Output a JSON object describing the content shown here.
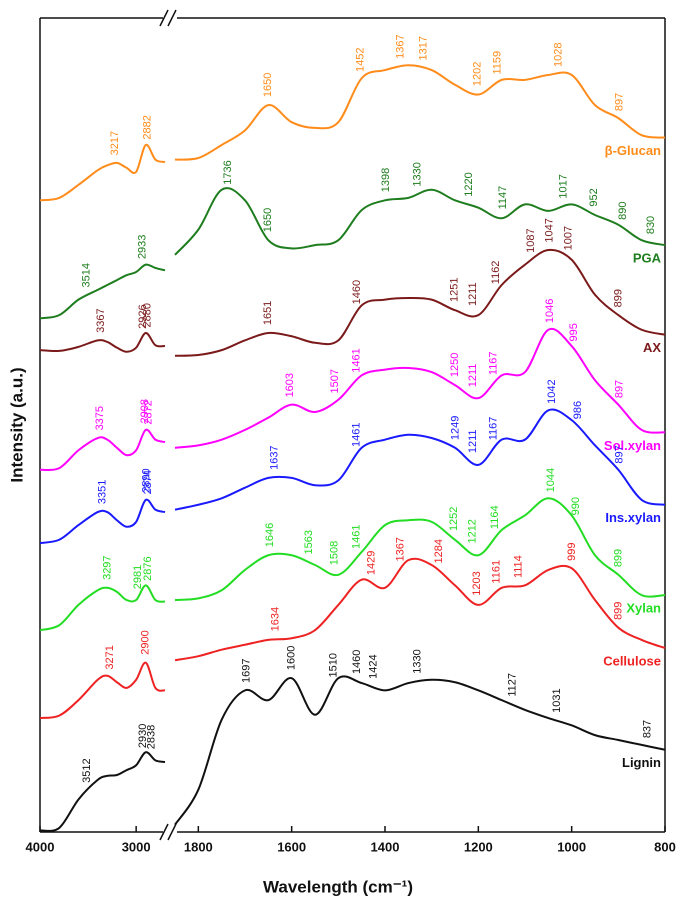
{
  "chart_data": {
    "type": "line",
    "xlabel": "Wavelength (cm⁻¹)",
    "ylabel": "Intensity (a.u.)",
    "xlim": [
      4000,
      800
    ],
    "xbreak": [
      2700,
      1850
    ],
    "ylim": [
      0,
      100
    ],
    "xticks": [
      4000,
      3000,
      1800,
      1600,
      1400,
      1200,
      1000,
      800
    ],
    "x": [
      4000,
      3800,
      3600,
      3400,
      3300,
      3200,
      3100,
      3000,
      2900,
      2800,
      2700,
      1850,
      1800,
      1750,
      1700,
      1650,
      1600,
      1550,
      1500,
      1450,
      1400,
      1350,
      1300,
      1250,
      1200,
      1150,
      1100,
      1050,
      1000,
      950,
      900,
      850,
      800
    ],
    "series": [
      {
        "name": "β-Glucan",
        "color": "#ff8c1a",
        "values": [
          77.6,
          77.9,
          79.5,
          81.3,
          81.9,
          82.2,
          81.6,
          81.1,
          84.4,
          82.6,
          82.3,
          82.6,
          82.8,
          84.4,
          86.2,
          89.3,
          87.2,
          86.5,
          87.2,
          92.6,
          93.6,
          94.2,
          93.6,
          91.8,
          90.6,
          92.4,
          92.4,
          93,
          93,
          89.3,
          87.7,
          85.6,
          85.3
        ],
        "peaks": [
          3217,
          2882,
          1650,
          1452,
          1367,
          1317,
          1202,
          1159,
          1028,
          897
        ]
      },
      {
        "name": "PGA",
        "color": "#1e7d1e",
        "values": [
          63.1,
          63.5,
          65.4,
          66.6,
          67.2,
          67.8,
          68.4,
          68.8,
          69.7,
          69.3,
          69,
          70.9,
          74,
          78.9,
          77.6,
          72.7,
          71.7,
          72.1,
          72.7,
          76.4,
          77.6,
          77.9,
          78.9,
          77.6,
          76.7,
          75.4,
          77.1,
          76.3,
          77.1,
          75.8,
          74.6,
          72.7,
          72.1
        ],
        "peaks": [
          3514,
          2933,
          1736,
          1650,
          1398,
          1330,
          1220,
          1147,
          1017,
          952,
          890,
          830
        ]
      },
      {
        "name": "AX",
        "color": "#7b1a1a",
        "values": [
          59.2,
          59.1,
          59.6,
          60.4,
          60.2,
          59.5,
          59,
          59.5,
          61.3,
          59.8,
          59.7,
          58.5,
          58.6,
          59.2,
          60.4,
          61.3,
          60.9,
          60.1,
          60.4,
          64.7,
          65.4,
          65.6,
          65.4,
          64.1,
          63.5,
          67.2,
          69.7,
          71.5,
          70.3,
          66,
          63.5,
          61.7,
          61.1
        ],
        "peaks": [
          3367,
          2926,
          2880,
          1651,
          1460,
          1251,
          1211,
          1162,
          1087,
          1047,
          1007,
          899
        ]
      },
      {
        "name": "Sol.xylan",
        "color": "#ff00ff",
        "values": [
          44.5,
          44.7,
          46.9,
          48.4,
          48.2,
          47.2,
          46.3,
          46.9,
          49.4,
          48.2,
          47.9,
          47.2,
          47.5,
          48.2,
          49.4,
          50.9,
          52.5,
          51.6,
          53.1,
          56.1,
          56.8,
          57,
          56.5,
          54.9,
          53.3,
          56.1,
          56.5,
          61.7,
          59.7,
          55.5,
          52.5,
          49.4,
          49.1
        ],
        "peaks": [
          3375,
          2908,
          2872,
          1603,
          1507,
          1461,
          1250,
          1211,
          1167,
          1046,
          995,
          897
        ]
      },
      {
        "name": "Ins.xylan",
        "color": "#1a1aff",
        "values": [
          35.5,
          35.9,
          37.7,
          39.3,
          39.3,
          38.3,
          37.5,
          38.1,
          40.8,
          39.6,
          39.3,
          39.6,
          40.2,
          41,
          42.3,
          43.5,
          43.5,
          42.6,
          43.2,
          47.2,
          48.2,
          48.8,
          48.4,
          47.2,
          45.1,
          48.2,
          48.2,
          51.8,
          50.6,
          47.5,
          44.5,
          40.8,
          40.2
        ],
        "peaks": [
          3351,
          2890,
          2874,
          1637,
          1461,
          1249,
          1211,
          1167,
          1042,
          986,
          897
        ]
      },
      {
        "name": "Xylan",
        "color": "#22dd22",
        "values": [
          24.8,
          25.4,
          27.9,
          29.7,
          30,
          29.5,
          28.5,
          28.5,
          30.3,
          28.5,
          28.3,
          28.5,
          28.7,
          29.7,
          32.2,
          34,
          34,
          32.8,
          31.6,
          34.4,
          37.7,
          38.3,
          38.1,
          35.9,
          34,
          37.1,
          38.9,
          41,
          38.9,
          34,
          31.6,
          29.1,
          29.1
        ],
        "peaks": [
          3297,
          2981,
          2876,
          1646,
          1563,
          1508,
          1461,
          1252,
          1212,
          1164,
          1044,
          990,
          899
        ]
      },
      {
        "name": "Cellulose",
        "color": "#ee2222",
        "values": [
          14,
          14.3,
          16.2,
          18.7,
          19.2,
          18.4,
          17.7,
          18.7,
          20.8,
          17.7,
          17.4,
          21.1,
          21.6,
          22.4,
          23,
          23.6,
          23.8,
          24.8,
          27.9,
          31,
          30,
          33.4,
          32.8,
          30.3,
          27.9,
          30,
          30.3,
          32.2,
          32.4,
          28.5,
          25.1,
          23.6,
          22.6
        ],
        "peaks": [
          3271,
          2900,
          1634,
          1429,
          1367,
          1284,
          1203,
          1161,
          1114,
          999,
          899
        ]
      },
      {
        "name": "Lignin",
        "color": "#111111",
        "values": [
          0.2,
          0.5,
          4,
          6.4,
          6.9,
          7,
          7.6,
          8.2,
          9.8,
          8.8,
          8.6,
          0.9,
          5.2,
          13.8,
          17.4,
          16.2,
          18.9,
          14.4,
          18.9,
          18.3,
          17.4,
          18.3,
          18.7,
          18.4,
          17.4,
          16.2,
          15,
          14,
          13.1,
          11.9,
          11.3,
          10.7,
          10.1
        ],
        "peaks": [
          3512,
          2930,
          2838,
          1697,
          1600,
          1510,
          1460,
          1424,
          1330,
          1127,
          1031,
          837
        ]
      }
    ]
  }
}
